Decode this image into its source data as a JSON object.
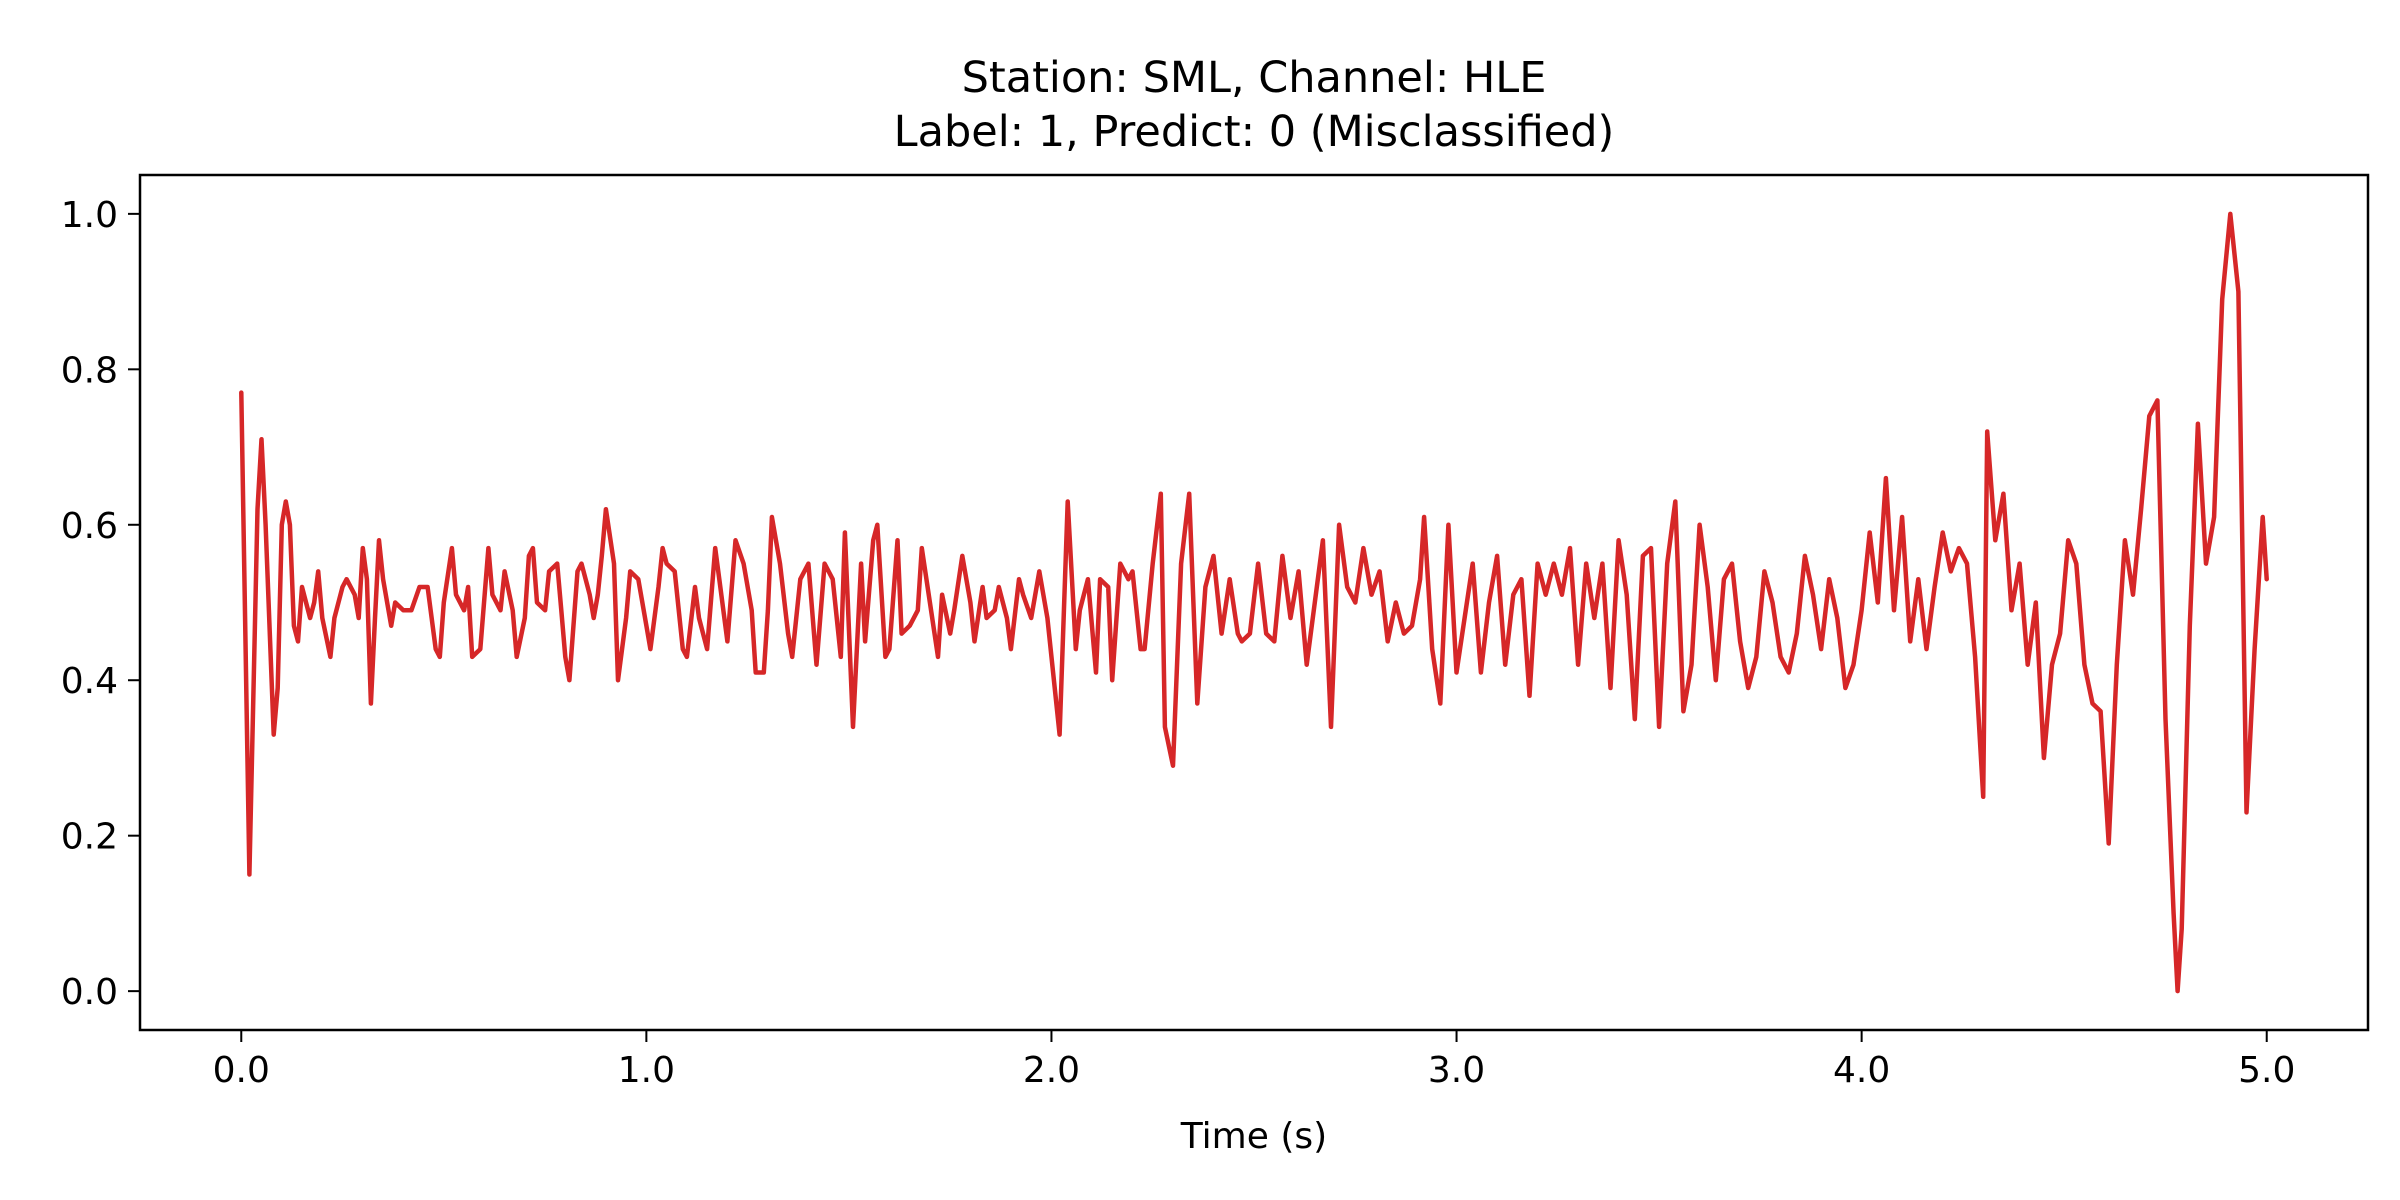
{
  "chart_data": {
    "type": "line",
    "title": "Station: SML, Channel: HLE",
    "subtitle": "Label: 1, Predict: 0 (Misclassified)",
    "xlabel": "Time (s)",
    "ylabel": "",
    "xlim": [
      -0.25,
      5.25
    ],
    "ylim": [
      -0.05,
      1.05
    ],
    "grid": false,
    "line_color": "#d62728",
    "x_ticks": [
      {
        "value": 0.0,
        "label": "0.0"
      },
      {
        "value": 1.0,
        "label": "1.0"
      },
      {
        "value": 2.0,
        "label": "2.0"
      },
      {
        "value": 3.0,
        "label": "3.0"
      },
      {
        "value": 4.0,
        "label": "4.0"
      },
      {
        "value": 5.0,
        "label": "5.0"
      }
    ],
    "y_ticks": [
      {
        "value": 0.0,
        "label": "0.0"
      },
      {
        "value": 0.2,
        "label": "0.2"
      },
      {
        "value": 0.4,
        "label": "0.4"
      },
      {
        "value": 0.6,
        "label": "0.6"
      },
      {
        "value": 0.8,
        "label": "0.8"
      },
      {
        "value": 1.0,
        "label": "1.0"
      }
    ],
    "series": [
      {
        "x": [
          0.0,
          0.02,
          0.04,
          0.05,
          0.06,
          0.08,
          0.09,
          0.1,
          0.11,
          0.12,
          0.13,
          0.14,
          0.15,
          0.17,
          0.18,
          0.19,
          0.2,
          0.22,
          0.23,
          0.25,
          0.26,
          0.28,
          0.29,
          0.3,
          0.31,
          0.32,
          0.33,
          0.34,
          0.35,
          0.37,
          0.38,
          0.4,
          0.42,
          0.44,
          0.45,
          0.46,
          0.48,
          0.49,
          0.5,
          0.52,
          0.53,
          0.55,
          0.56,
          0.57,
          0.59,
          0.61,
          0.62,
          0.64,
          0.65,
          0.67,
          0.68,
          0.7,
          0.71,
          0.72,
          0.73,
          0.75,
          0.76,
          0.78,
          0.79,
          0.8,
          0.81,
          0.83,
          0.84,
          0.86,
          0.87,
          0.88,
          0.89,
          0.9,
          0.92,
          0.93,
          0.95,
          0.96,
          0.98,
          1.0,
          1.01,
          1.03,
          1.04,
          1.05,
          1.07,
          1.09,
          1.1,
          1.12,
          1.13,
          1.15,
          1.17,
          1.18,
          1.2,
          1.22,
          1.24,
          1.26,
          1.27,
          1.29,
          1.3,
          1.31,
          1.33,
          1.35,
          1.36,
          1.38,
          1.4,
          1.42,
          1.44,
          1.46,
          1.48,
          1.49,
          1.51,
          1.53,
          1.54,
          1.56,
          1.57,
          1.59,
          1.6,
          1.62,
          1.63,
          1.65,
          1.67,
          1.68,
          1.7,
          1.72,
          1.73,
          1.75,
          1.76,
          1.78,
          1.8,
          1.81,
          1.83,
          1.84,
          1.86,
          1.87,
          1.89,
          1.9,
          1.92,
          1.93,
          1.95,
          1.97,
          1.99,
          2.02,
          2.04,
          2.06,
          2.07,
          2.09,
          2.11,
          2.12,
          2.14,
          2.15,
          2.17,
          2.19,
          2.2,
          2.22,
          2.23,
          2.25,
          2.27,
          2.28,
          2.3,
          2.32,
          2.34,
          2.36,
          2.38,
          2.4,
          2.42,
          2.44,
          2.46,
          2.47,
          2.49,
          2.51,
          2.53,
          2.55,
          2.57,
          2.59,
          2.61,
          2.63,
          2.65,
          2.67,
          2.69,
          2.71,
          2.73,
          2.75,
          2.77,
          2.79,
          2.81,
          2.83,
          2.85,
          2.87,
          2.89,
          2.91,
          2.92,
          2.94,
          2.96,
          2.98,
          3.0,
          3.02,
          3.04,
          3.06,
          3.08,
          3.1,
          3.12,
          3.14,
          3.16,
          3.18,
          3.2,
          3.22,
          3.24,
          3.26,
          3.28,
          3.3,
          3.32,
          3.34,
          3.36,
          3.38,
          3.4,
          3.42,
          3.44,
          3.46,
          3.48,
          3.5,
          3.52,
          3.54,
          3.56,
          3.58,
          3.6,
          3.62,
          3.64,
          3.66,
          3.68,
          3.7,
          3.72,
          3.74,
          3.76,
          3.78,
          3.8,
          3.82,
          3.84,
          3.86,
          3.88,
          3.9,
          3.92,
          3.94,
          3.96,
          3.98,
          4.0,
          4.02,
          4.04,
          4.06,
          4.08,
          4.1,
          4.12,
          4.14,
          4.16,
          4.18,
          4.2,
          4.22,
          4.24,
          4.26,
          4.28,
          4.3,
          4.31,
          4.33,
          4.35,
          4.37,
          4.39,
          4.41,
          4.43,
          4.45,
          4.47,
          4.49,
          4.51,
          4.53,
          4.55,
          4.57,
          4.59,
          4.61,
          4.63,
          4.65,
          4.67,
          4.69,
          4.71,
          4.73,
          4.75,
          4.77,
          4.78,
          4.79,
          4.81,
          4.83,
          4.85,
          4.87,
          4.89,
          4.91,
          4.93,
          4.95,
          4.97,
          4.99,
          5.0
        ],
        "y": [
          0.77,
          0.15,
          0.62,
          0.71,
          0.6,
          0.33,
          0.39,
          0.6,
          0.63,
          0.6,
          0.47,
          0.45,
          0.52,
          0.48,
          0.5,
          0.54,
          0.48,
          0.43,
          0.48,
          0.52,
          0.53,
          0.51,
          0.48,
          0.57,
          0.53,
          0.37,
          0.48,
          0.58,
          0.53,
          0.47,
          0.5,
          0.49,
          0.49,
          0.52,
          0.52,
          0.52,
          0.44,
          0.43,
          0.5,
          0.57,
          0.51,
          0.49,
          0.52,
          0.43,
          0.44,
          0.57,
          0.51,
          0.49,
          0.54,
          0.49,
          0.43,
          0.48,
          0.56,
          0.57,
          0.5,
          0.49,
          0.54,
          0.55,
          0.49,
          0.43,
          0.4,
          0.54,
          0.55,
          0.51,
          0.48,
          0.51,
          0.56,
          0.62,
          0.55,
          0.4,
          0.48,
          0.54,
          0.53,
          0.47,
          0.44,
          0.52,
          0.57,
          0.55,
          0.54,
          0.44,
          0.43,
          0.52,
          0.48,
          0.44,
          0.57,
          0.53,
          0.45,
          0.58,
          0.55,
          0.49,
          0.41,
          0.41,
          0.49,
          0.61,
          0.55,
          0.46,
          0.43,
          0.53,
          0.55,
          0.42,
          0.55,
          0.53,
          0.43,
          0.59,
          0.34,
          0.55,
          0.45,
          0.58,
          0.6,
          0.43,
          0.44,
          0.58,
          0.46,
          0.47,
          0.49,
          0.57,
          0.5,
          0.43,
          0.51,
          0.46,
          0.49,
          0.56,
          0.5,
          0.45,
          0.52,
          0.48,
          0.49,
          0.52,
          0.48,
          0.44,
          0.53,
          0.51,
          0.48,
          0.54,
          0.48,
          0.33,
          0.63,
          0.44,
          0.49,
          0.53,
          0.41,
          0.53,
          0.52,
          0.4,
          0.55,
          0.53,
          0.54,
          0.44,
          0.44,
          0.55,
          0.64,
          0.34,
          0.29,
          0.55,
          0.64,
          0.37,
          0.52,
          0.56,
          0.46,
          0.53,
          0.46,
          0.45,
          0.46,
          0.55,
          0.46,
          0.45,
          0.56,
          0.48,
          0.54,
          0.42,
          0.5,
          0.58,
          0.34,
          0.6,
          0.52,
          0.5,
          0.57,
          0.51,
          0.54,
          0.45,
          0.5,
          0.46,
          0.47,
          0.53,
          0.61,
          0.44,
          0.37,
          0.6,
          0.41,
          0.48,
          0.55,
          0.41,
          0.5,
          0.56,
          0.42,
          0.51,
          0.53,
          0.38,
          0.55,
          0.51,
          0.55,
          0.51,
          0.57,
          0.42,
          0.55,
          0.48,
          0.55,
          0.39,
          0.58,
          0.51,
          0.35,
          0.56,
          0.57,
          0.34,
          0.55,
          0.63,
          0.36,
          0.42,
          0.6,
          0.52,
          0.4,
          0.53,
          0.55,
          0.45,
          0.39,
          0.43,
          0.54,
          0.5,
          0.43,
          0.41,
          0.46,
          0.56,
          0.51,
          0.44,
          0.53,
          0.48,
          0.39,
          0.42,
          0.49,
          0.59,
          0.5,
          0.66,
          0.49,
          0.61,
          0.45,
          0.53,
          0.44,
          0.52,
          0.59,
          0.54,
          0.57,
          0.55,
          0.43,
          0.25,
          0.72,
          0.58,
          0.64,
          0.49,
          0.55,
          0.42,
          0.5,
          0.3,
          0.42,
          0.46,
          0.58,
          0.55,
          0.42,
          0.37,
          0.36,
          0.19,
          0.42,
          0.58,
          0.51,
          0.62,
          0.74,
          0.76,
          0.35,
          0.1,
          0.0,
          0.08,
          0.47,
          0.73,
          0.55,
          0.61,
          0.89,
          1.0,
          0.9,
          0.23,
          0.44,
          0.61,
          0.53
        ]
      }
    ]
  }
}
